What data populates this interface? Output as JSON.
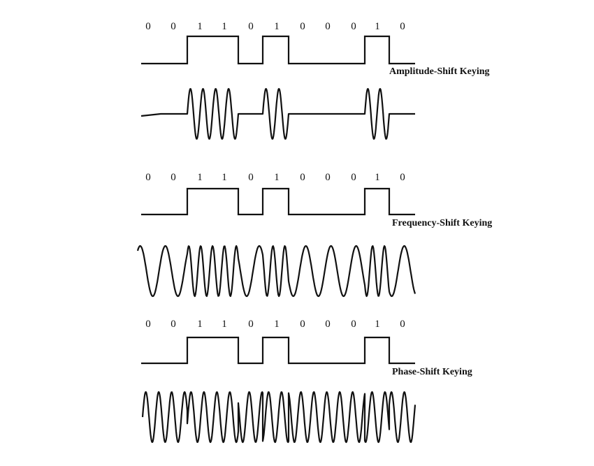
{
  "panels": [
    {
      "title": "Amplitude-Shift Keying",
      "bits": [
        "0",
        "0",
        "1",
        "1",
        "0",
        "1",
        "0",
        "0",
        "0",
        "1",
        "0"
      ],
      "modulation": "amplitude"
    },
    {
      "title": "Frequency-Shift Keying",
      "bits": [
        "0",
        "0",
        "1",
        "1",
        "0",
        "1",
        "0",
        "0",
        "0",
        "1",
        "0"
      ],
      "modulation": "frequency"
    },
    {
      "title": "Phase-Shift Keying",
      "bits": [
        "0",
        "0",
        "1",
        "1",
        "0",
        "1",
        "0",
        "0",
        "0",
        "1",
        "0"
      ],
      "modulation": "phase"
    }
  ],
  "colors": {
    "ink": "#111111",
    "background": "#ffffff"
  }
}
